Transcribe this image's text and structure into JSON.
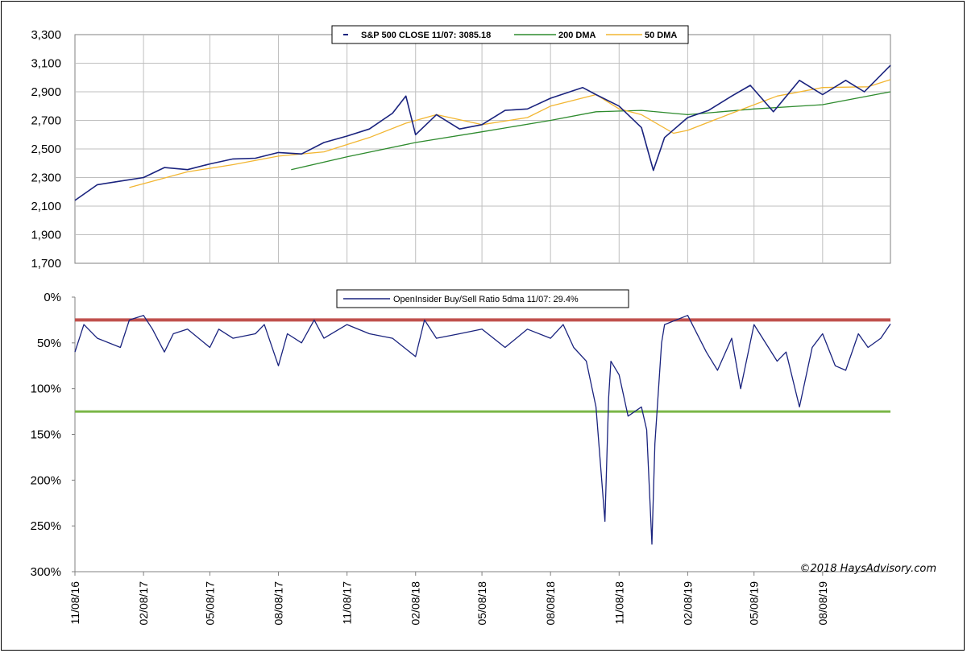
{
  "chart_data": [
    {
      "type": "line",
      "y_ticks": [
        "3,300",
        "3,100",
        "2,900",
        "2,700",
        "2,500",
        "2,300",
        "2,100",
        "1,900",
        "1,700"
      ],
      "ylim": [
        1700,
        3300
      ],
      "grid": true,
      "legend_position": "top-center",
      "series": [
        {
          "name": "S&P 500 CLOSE 11/07: 3085.18",
          "color": "#1a237e",
          "x": [
            "11/08/16",
            "12/08/16",
            "01/08/17",
            "02/08/17",
            "03/08/17",
            "04/08/17",
            "05/08/17",
            "06/08/17",
            "07/08/17",
            "08/08/17",
            "09/08/17",
            "10/08/17",
            "11/08/17",
            "12/08/17",
            "01/08/18",
            "01/26/18",
            "02/08/18",
            "03/08/18",
            "04/08/18",
            "05/08/18",
            "06/08/18",
            "07/08/18",
            "08/08/18",
            "09/20/18",
            "10/08/18",
            "11/08/18",
            "12/08/18",
            "12/24/18",
            "01/08/19",
            "02/08/19",
            "03/08/19",
            "04/08/19",
            "05/03/19",
            "06/03/19",
            "07/08/19",
            "08/08/19",
            "09/08/19",
            "10/03/19",
            "11/07/19"
          ],
          "values": [
            2140,
            2250,
            2275,
            2300,
            2370,
            2355,
            2395,
            2430,
            2435,
            2475,
            2465,
            2545,
            2590,
            2640,
            2750,
            2870,
            2600,
            2740,
            2640,
            2670,
            2770,
            2780,
            2855,
            2930,
            2880,
            2800,
            2650,
            2350,
            2580,
            2720,
            2770,
            2870,
            2945,
            2760,
            2980,
            2880,
            2980,
            2900,
            3085
          ]
        },
        {
          "name": "200 DMA",
          "color": "#2e8b2e",
          "x": [
            "08/25/17",
            "11/08/17",
            "02/08/18",
            "05/08/18",
            "08/08/18",
            "10/08/18",
            "12/08/18",
            "02/08/19",
            "05/08/19",
            "08/08/19",
            "11/07/19"
          ],
          "values": [
            2355,
            2445,
            2545,
            2620,
            2700,
            2760,
            2770,
            2740,
            2780,
            2810,
            2900
          ]
        },
        {
          "name": "50 DMA",
          "color": "#f2b632",
          "x": [
            "01/20/17",
            "04/08/17",
            "06/08/17",
            "08/08/17",
            "10/08/17",
            "12/08/17",
            "01/26/18",
            "03/08/18",
            "05/08/18",
            "07/08/18",
            "08/08/18",
            "10/08/18",
            "11/08/18",
            "12/08/18",
            "01/20/19",
            "02/08/19",
            "04/08/19",
            "06/08/19",
            "08/08/19",
            "10/08/19",
            "11/07/19"
          ],
          "values": [
            2230,
            2340,
            2390,
            2450,
            2480,
            2580,
            2680,
            2740,
            2670,
            2720,
            2800,
            2880,
            2780,
            2740,
            2610,
            2630,
            2750,
            2870,
            2930,
            2935,
            2985
          ]
        }
      ]
    },
    {
      "type": "line",
      "y_ticks": [
        "0%",
        "50%",
        "100%",
        "150%",
        "200%",
        "250%",
        "300%"
      ],
      "ylim": [
        0,
        300
      ],
      "y_inverted": true,
      "grid": false,
      "legend_position": "top-center",
      "x_ticks": [
        "11/08/16",
        "02/08/17",
        "05/08/17",
        "08/08/17",
        "11/08/17",
        "02/08/18",
        "05/08/18",
        "08/08/18",
        "11/08/18",
        "02/08/19",
        "05/08/19",
        "08/08/19"
      ],
      "reference_lines": [
        {
          "value": 25,
          "color": "#c0504d"
        },
        {
          "value": 125,
          "color": "#7ab648"
        }
      ],
      "series": [
        {
          "name": "OpenInsider Buy/Sell Ratio 5dma 11/07: 29.4%",
          "color": "#1a237e",
          "x": [
            "11/08/16",
            "11/20/16",
            "12/08/16",
            "01/08/17",
            "01/20/17",
            "02/08/17",
            "02/20/17",
            "03/08/17",
            "03/20/17",
            "04/08/17",
            "05/08/17",
            "05/20/17",
            "06/08/17",
            "07/08/17",
            "07/20/17",
            "08/08/17",
            "08/20/17",
            "09/08/17",
            "09/25/17",
            "10/08/17",
            "11/08/17",
            "12/08/17",
            "01/08/18",
            "02/08/18",
            "02/20/18",
            "03/08/18",
            "04/08/18",
            "05/08/18",
            "06/08/18",
            "07/08/18",
            "08/08/18",
            "08/25/18",
            "09/08/18",
            "09/25/18",
            "10/08/18",
            "10/20/18",
            "10/25/18",
            "10/28/18",
            "11/08/18",
            "11/20/18",
            "12/08/18",
            "12/15/18",
            "12/22/18",
            "12/26/18",
            "01/04/19",
            "01/08/19",
            "02/08/19",
            "03/05/19",
            "03/20/19",
            "04/08/19",
            "04/20/19",
            "05/08/19",
            "06/08/19",
            "06/20/19",
            "07/08/19",
            "07/25/19",
            "08/08/19",
            "08/25/19",
            "09/08/19",
            "09/25/19",
            "10/08/19",
            "10/25/19",
            "11/07/19"
          ],
          "values": [
            60,
            30,
            45,
            55,
            25,
            20,
            35,
            60,
            40,
            35,
            55,
            35,
            45,
            40,
            30,
            75,
            40,
            50,
            25,
            45,
            30,
            40,
            45,
            65,
            25,
            45,
            40,
            35,
            55,
            35,
            45,
            30,
            55,
            70,
            120,
            245,
            110,
            70,
            85,
            130,
            120,
            145,
            270,
            160,
            50,
            30,
            20,
            60,
            80,
            45,
            100,
            30,
            70,
            60,
            120,
            55,
            40,
            75,
            80,
            40,
            55,
            45,
            29.4
          ]
        }
      ]
    }
  ],
  "x_labels": [
    "11/08/16",
    "02/08/17",
    "05/08/17",
    "08/08/17",
    "11/08/17",
    "02/08/18",
    "05/08/18",
    "08/08/18",
    "11/08/18",
    "02/08/19",
    "05/08/19",
    "08/08/19"
  ],
  "copyright": "©2018 HaysAdvisory.com",
  "colors": {
    "sp500": "#1a237e",
    "dma200": "#2e8b2e",
    "dma50": "#f2b632",
    "upper_ref": "#c0504d",
    "lower_ref": "#7ab648",
    "grid": "#bfbfbf"
  }
}
